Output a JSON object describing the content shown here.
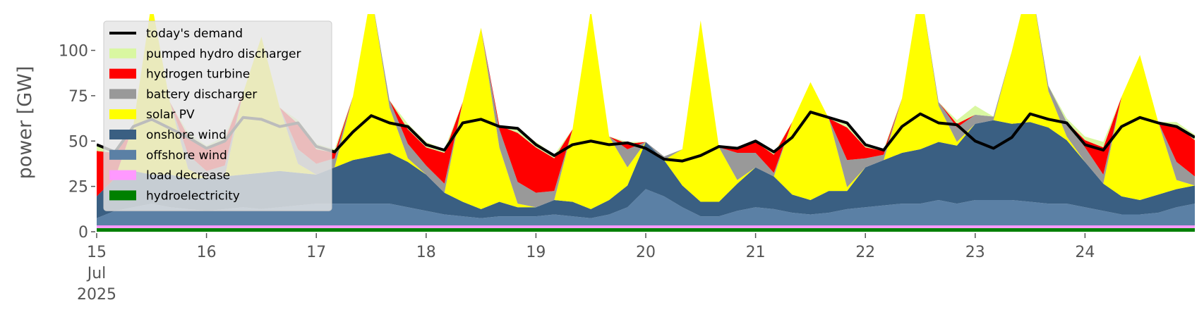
{
  "chart_data": {
    "type": "area",
    "y_label": "power [GW]",
    "ylim": [
      0,
      120
    ],
    "yticks": [
      0,
      25,
      50,
      75,
      100
    ],
    "xlim": [
      0,
      240
    ],
    "xticks": [
      {
        "value": 0,
        "label": "15\nJul\n2025"
      },
      {
        "value": 24,
        "label": "16"
      },
      {
        "value": 48,
        "label": "17"
      },
      {
        "value": 72,
        "label": "18"
      },
      {
        "value": 96,
        "label": "19"
      },
      {
        "value": 120,
        "label": "20"
      },
      {
        "value": 144,
        "label": "21"
      },
      {
        "value": 168,
        "label": "22"
      },
      {
        "value": 192,
        "label": "23"
      },
      {
        "value": 216,
        "label": "24"
      }
    ],
    "legend": "upper left",
    "x": [
      0,
      4,
      8,
      12,
      16,
      20,
      24,
      28,
      32,
      36,
      40,
      44,
      48,
      52,
      56,
      60,
      64,
      68,
      72,
      76,
      80,
      84,
      88,
      92,
      96,
      100,
      104,
      108,
      112,
      116,
      120,
      124,
      128,
      132,
      136,
      140,
      144,
      148,
      152,
      156,
      160,
      164,
      168,
      172,
      176,
      180,
      184,
      188,
      192,
      196,
      200,
      204,
      208,
      212,
      216,
      220,
      224,
      228,
      232,
      236,
      240
    ],
    "series": [
      {
        "name": "hydroelectricity",
        "color": "#008000",
        "values": [
          2,
          2,
          2,
          2,
          2,
          2,
          2,
          2,
          2,
          2,
          2,
          2,
          2,
          2,
          2,
          2,
          2,
          2,
          2,
          2,
          2,
          2,
          2,
          2,
          2,
          2,
          2,
          2,
          2,
          2,
          2,
          2,
          2,
          2,
          2,
          2,
          2,
          2,
          2,
          2,
          2,
          2,
          2,
          2,
          2,
          2,
          2,
          2,
          2,
          2,
          2,
          2,
          2,
          2,
          2,
          2,
          2,
          2,
          2,
          2,
          2
        ]
      },
      {
        "name": "load decrease",
        "color": "#ff99ff",
        "values": [
          1.5,
          1.5,
          1.5,
          1.5,
          1.5,
          1.5,
          1.5,
          1.5,
          1.5,
          1.5,
          1.5,
          1.5,
          1.5,
          1.5,
          1.5,
          1.5,
          1.5,
          1.5,
          1.5,
          1.5,
          1.5,
          1.5,
          1.5,
          1.5,
          1.5,
          1.5,
          1.5,
          1.5,
          1.5,
          1.5,
          1.5,
          1.5,
          1.5,
          1.5,
          1.5,
          1.5,
          1.5,
          1.5,
          1.5,
          1.5,
          1.5,
          1.5,
          1.5,
          1.5,
          1.5,
          1.5,
          1.5,
          1.5,
          1.5,
          1.5,
          1.5,
          1.5,
          1.5,
          1.5,
          1.5,
          1.5,
          1.5,
          1.5,
          1.5,
          1.5,
          1.5
        ]
      },
      {
        "name": "offshore wind",
        "color": "#5b80a5",
        "values": [
          4,
          8,
          10,
          12,
          10,
          9,
          8,
          9,
          10,
          9,
          10,
          11,
          12,
          12,
          12,
          12,
          12,
          10,
          8,
          6,
          5,
          4,
          5,
          5,
          5,
          6,
          5,
          4,
          6,
          10,
          20,
          16,
          10,
          5,
          5,
          8,
          10,
          9,
          7,
          6,
          7,
          9,
          10,
          11,
          12,
          12,
          14,
          12,
          14,
          14,
          14,
          13,
          12,
          12,
          10,
          8,
          6,
          6,
          7,
          10,
          12
        ]
      },
      {
        "name": "onshore wind",
        "color": "#3a5f82",
        "values": [
          12,
          18,
          20,
          16,
          18,
          17,
          18,
          18,
          18,
          20,
          20,
          18,
          16,
          20,
          24,
          26,
          28,
          25,
          20,
          12,
          8,
          5,
          8,
          5,
          5,
          8,
          8,
          5,
          8,
          12,
          26,
          20,
          12,
          8,
          8,
          15,
          22,
          18,
          10,
          8,
          12,
          10,
          22,
          25,
          28,
          30,
          32,
          32,
          42,
          44,
          42,
          44,
          42,
          35,
          25,
          15,
          10,
          8,
          10,
          10,
          10
        ]
      },
      {
        "name": "solar PV",
        "color": "#ffff00",
        "values": [
          0,
          0,
          25,
          95,
          40,
          5,
          0,
          0,
          45,
          75,
          35,
          5,
          0,
          0,
          35,
          90,
          25,
          2,
          0,
          0,
          55,
          100,
          30,
          2,
          0,
          0,
          40,
          110,
          35,
          10,
          0,
          0,
          20,
          100,
          30,
          2,
          0,
          0,
          40,
          65,
          40,
          2,
          0,
          0,
          30,
          90,
          20,
          2,
          0,
          0,
          40,
          80,
          20,
          2,
          0,
          0,
          55,
          80,
          40,
          5,
          0
        ]
      },
      {
        "name": "battery discharger",
        "color": "#999999",
        "values": [
          0,
          0,
          0,
          0,
          0,
          8,
          4,
          6,
          0,
          0,
          0,
          8,
          6,
          5,
          0,
          0,
          4,
          8,
          5,
          5,
          0,
          0,
          10,
          12,
          8,
          5,
          0,
          0,
          0,
          10,
          0,
          2,
          0,
          0,
          0,
          15,
          8,
          2,
          0,
          0,
          0,
          15,
          5,
          3,
          0,
          0,
          2,
          8,
          5,
          2,
          0,
          0,
          3,
          8,
          8,
          5,
          0,
          0,
          0,
          10,
          5
        ]
      },
      {
        "name": "hydrogen turbine",
        "color": "#ff0000",
        "values": [
          25,
          14,
          0,
          0,
          0,
          10,
          12,
          14,
          0,
          0,
          0,
          14,
          8,
          3,
          0,
          0,
          0,
          8,
          10,
          17,
          0,
          0,
          2,
          27,
          25,
          18,
          0,
          0,
          0,
          3,
          0,
          0,
          0,
          0,
          0,
          3,
          6,
          10,
          0,
          0,
          0,
          18,
          6,
          2,
          0,
          0,
          0,
          2,
          0,
          0,
          0,
          0,
          0,
          0,
          4,
          15,
          0,
          0,
          0,
          20,
          20
        ]
      },
      {
        "name": "pumped hydro discharger",
        "color": "#d9f7a1",
        "values": [
          3,
          1,
          0,
          0,
          0,
          2,
          2,
          2,
          0,
          0,
          0,
          2,
          3,
          2,
          0,
          0,
          0,
          3,
          3,
          2,
          0,
          0,
          0,
          2,
          3,
          2,
          0,
          0,
          0,
          1,
          0,
          0,
          0,
          0,
          0,
          0,
          0,
          1,
          0,
          0,
          0,
          2,
          2,
          1,
          0,
          0,
          0,
          2,
          5,
          0,
          0,
          0,
          0,
          2,
          2,
          3,
          0,
          0,
          0,
          2,
          3
        ]
      }
    ],
    "lines": [
      {
        "name": "today's demand",
        "color": "#000000",
        "values": [
          48,
          44,
          58,
          62,
          57,
          52,
          46,
          50,
          63,
          62,
          58,
          60,
          47,
          44,
          55,
          64,
          60,
          58,
          48,
          45,
          60,
          62,
          58,
          57,
          48,
          42,
          48,
          50,
          48,
          49,
          46,
          40,
          39,
          42,
          47,
          46,
          50,
          44,
          52,
          66,
          63,
          60,
          48,
          45,
          58,
          65,
          60,
          59,
          50,
          46,
          52,
          65,
          62,
          60,
          48,
          45,
          58,
          63,
          60,
          58,
          52
        ]
      }
    ]
  }
}
